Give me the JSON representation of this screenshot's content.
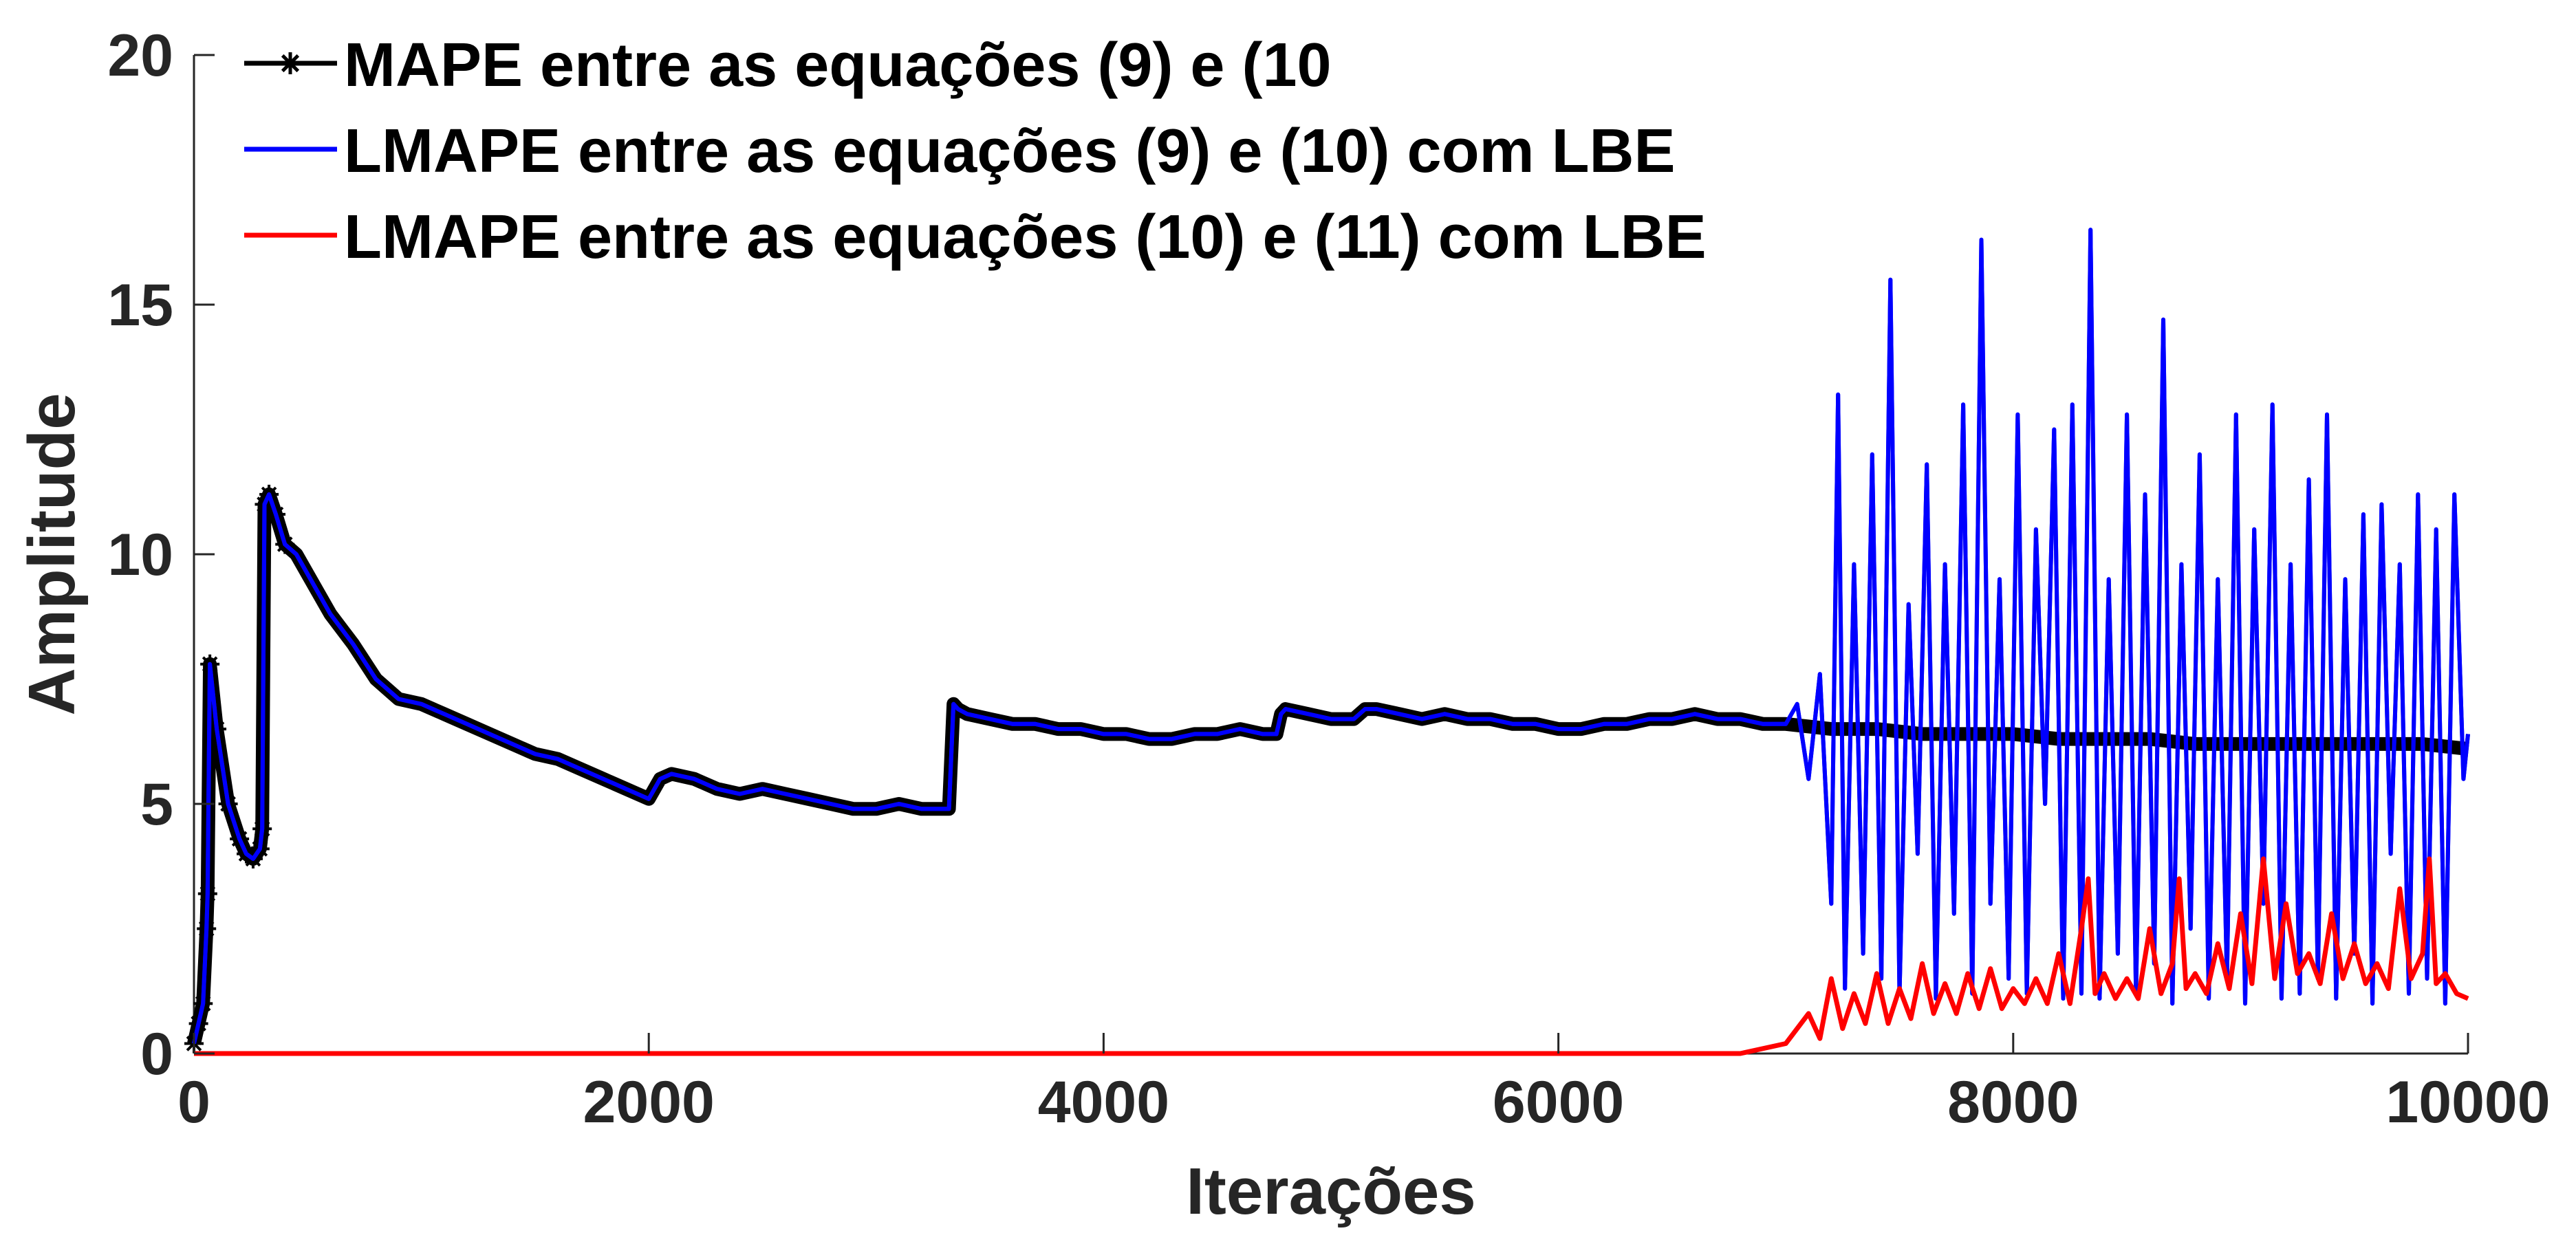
{
  "chart_data": {
    "type": "line",
    "title": "",
    "xlabel": "Iterações",
    "ylabel": "Amplitude",
    "xlim": [
      0,
      10000
    ],
    "ylim": [
      0,
      20
    ],
    "xticks": [
      0,
      2000,
      4000,
      6000,
      8000,
      10000
    ],
    "yticks": [
      0,
      5,
      10,
      15,
      20
    ],
    "xtick_labels": [
      "0",
      "2000",
      "4000",
      "6000",
      "8000",
      "10000"
    ],
    "ytick_labels": [
      "0",
      "5",
      "10",
      "15",
      "20"
    ],
    "grid": false,
    "legend_position": "top-left",
    "series": [
      {
        "name": "MAPE entre as equações (9) e (10",
        "color": "#000000",
        "marker": "asterisk",
        "x": [
          0,
          20,
          40,
          55,
          60,
          70,
          100,
          150,
          200,
          230,
          260,
          290,
          300,
          310,
          330,
          360,
          400,
          450,
          500,
          600,
          700,
          800,
          900,
          1000,
          1100,
          1200,
          1300,
          1400,
          1500,
          1600,
          1700,
          1800,
          1900,
          2000,
          2050,
          2100,
          2200,
          2300,
          2400,
          2500,
          2600,
          2700,
          2800,
          2900,
          3000,
          3100,
          3200,
          3320,
          3340,
          3360,
          3400,
          3500,
          3600,
          3700,
          3800,
          3900,
          4000,
          4100,
          4200,
          4300,
          4400,
          4500,
          4600,
          4700,
          4760,
          4780,
          4800,
          4900,
          5000,
          5100,
          5150,
          5200,
          5300,
          5400,
          5500,
          5600,
          5700,
          5800,
          5900,
          6000,
          6100,
          6200,
          6300,
          6400,
          6500,
          6600,
          6700,
          6800,
          6900,
          7000,
          7200,
          7400,
          7600,
          7800,
          8000,
          8200,
          8400,
          8600,
          8800,
          9000,
          9200,
          9400,
          9600,
          9800,
          10000
        ],
        "values": [
          0.2,
          0.6,
          1.0,
          2.5,
          3.2,
          7.8,
          6.5,
          5.0,
          4.3,
          4.0,
          3.9,
          4.1,
          4.5,
          11.0,
          11.2,
          10.8,
          10.2,
          10.0,
          9.6,
          8.8,
          8.2,
          7.5,
          7.1,
          7.0,
          6.8,
          6.6,
          6.4,
          6.2,
          6.0,
          5.9,
          5.7,
          5.5,
          5.3,
          5.1,
          5.5,
          5.6,
          5.5,
          5.3,
          5.2,
          5.3,
          5.2,
          5.1,
          5.0,
          4.9,
          4.9,
          5.0,
          4.9,
          4.9,
          7.0,
          6.9,
          6.8,
          6.7,
          6.6,
          6.6,
          6.5,
          6.5,
          6.4,
          6.4,
          6.3,
          6.3,
          6.4,
          6.4,
          6.5,
          6.4,
          6.4,
          6.8,
          6.9,
          6.8,
          6.7,
          6.7,
          6.9,
          6.9,
          6.8,
          6.7,
          6.8,
          6.7,
          6.7,
          6.6,
          6.6,
          6.5,
          6.5,
          6.6,
          6.6,
          6.7,
          6.7,
          6.8,
          6.7,
          6.7,
          6.6,
          6.6,
          6.5,
          6.5,
          6.4,
          6.4,
          6.4,
          6.3,
          6.3,
          6.3,
          6.2,
          6.2,
          6.2,
          6.2,
          6.2,
          6.2,
          6.1
        ]
      },
      {
        "name": "LMAPE entre as equações (9) e (10) com LBE",
        "color": "#0000ff",
        "marker": "none",
        "x": [
          0,
          20,
          40,
          55,
          60,
          70,
          100,
          150,
          200,
          230,
          260,
          290,
          300,
          310,
          330,
          360,
          400,
          450,
          500,
          600,
          700,
          800,
          900,
          1000,
          1100,
          1200,
          1300,
          1400,
          1500,
          1600,
          1700,
          1800,
          1900,
          2000,
          2050,
          2100,
          2200,
          2300,
          2400,
          2500,
          2600,
          2700,
          2800,
          2900,
          3000,
          3100,
          3200,
          3320,
          3340,
          3360,
          3400,
          3500,
          3600,
          3700,
          3800,
          3900,
          4000,
          4100,
          4200,
          4300,
          4400,
          4500,
          4600,
          4700,
          4760,
          4780,
          4800,
          4900,
          5000,
          5100,
          5150,
          5200,
          5300,
          5400,
          5500,
          5600,
          5700,
          5800,
          5900,
          6000,
          6100,
          6200,
          6300,
          6400,
          6500,
          6600,
          6700,
          6800,
          6900,
          7000,
          7050,
          7100,
          7150,
          7200,
          7230,
          7260,
          7300,
          7340,
          7380,
          7420,
          7460,
          7500,
          7540,
          7580,
          7620,
          7660,
          7700,
          7740,
          7780,
          7820,
          7860,
          7900,
          7940,
          7980,
          8020,
          8060,
          8100,
          8140,
          8180,
          8220,
          8260,
          8300,
          8340,
          8380,
          8420,
          8460,
          8500,
          8540,
          8580,
          8620,
          8660,
          8700,
          8740,
          8780,
          8820,
          8860,
          8900,
          8940,
          8980,
          9020,
          9060,
          9100,
          9140,
          9180,
          9220,
          9260,
          9300,
          9340,
          9380,
          9420,
          9460,
          9500,
          9540,
          9580,
          9620,
          9660,
          9700,
          9740,
          9780,
          9820,
          9860,
          9900,
          9940,
          9980,
          10000
        ],
        "values": [
          0.2,
          0.6,
          1.0,
          2.5,
          3.2,
          7.8,
          6.5,
          5.0,
          4.3,
          4.0,
          3.9,
          4.1,
          4.5,
          11.0,
          11.2,
          10.8,
          10.2,
          10.0,
          9.6,
          8.8,
          8.2,
          7.5,
          7.1,
          7.0,
          6.8,
          6.6,
          6.4,
          6.2,
          6.0,
          5.9,
          5.7,
          5.5,
          5.3,
          5.1,
          5.5,
          5.6,
          5.5,
          5.3,
          5.2,
          5.3,
          5.2,
          5.1,
          5.0,
          4.9,
          4.9,
          5.0,
          4.9,
          4.9,
          7.0,
          6.9,
          6.8,
          6.7,
          6.6,
          6.6,
          6.5,
          6.5,
          6.4,
          6.4,
          6.3,
          6.3,
          6.4,
          6.4,
          6.5,
          6.4,
          6.4,
          6.8,
          6.9,
          6.8,
          6.7,
          6.7,
          6.9,
          6.9,
          6.8,
          6.7,
          6.8,
          6.7,
          6.7,
          6.6,
          6.6,
          6.5,
          6.5,
          6.6,
          6.6,
          6.7,
          6.7,
          6.8,
          6.7,
          6.7,
          6.6,
          6.6,
          7.0,
          5.5,
          7.6,
          3.0,
          13.2,
          1.3,
          9.8,
          2.0,
          12.0,
          1.5,
          15.5,
          1.2,
          9.0,
          4.0,
          11.8,
          1.1,
          9.8,
          2.8,
          13.0,
          1.2,
          16.3,
          3.0,
          9.5,
          1.5,
          12.8,
          1.2,
          10.5,
          5.0,
          12.5,
          1.1,
          13.0,
          1.2,
          16.5,
          1.1,
          9.5,
          2.0,
          12.8,
          1.2,
          11.2,
          1.8,
          14.7,
          1.0,
          9.8,
          2.5,
          12.0,
          1.1,
          9.5,
          1.5,
          12.8,
          1.0,
          10.5,
          3.0,
          13.0,
          1.1,
          9.8,
          1.2,
          11.5,
          1.5,
          12.8,
          1.1,
          9.5,
          2.0,
          10.8,
          1.0,
          11.0,
          4.0,
          9.8,
          1.2,
          11.2,
          1.5,
          10.5,
          1.0,
          11.2,
          5.5,
          6.4
        ]
      },
      {
        "name": "LMAPE entre as equações (10) e (11) com LBE",
        "color": "#ff0000",
        "marker": "none",
        "x": [
          0,
          6800,
          7000,
          7100,
          7150,
          7200,
          7250,
          7300,
          7350,
          7400,
          7450,
          7500,
          7550,
          7600,
          7650,
          7700,
          7750,
          7800,
          7850,
          7900,
          7950,
          8000,
          8050,
          8100,
          8150,
          8200,
          8250,
          8300,
          8330,
          8360,
          8400,
          8450,
          8500,
          8550,
          8600,
          8650,
          8700,
          8730,
          8760,
          8800,
          8850,
          8900,
          8950,
          9000,
          9050,
          9100,
          9150,
          9200,
          9250,
          9300,
          9350,
          9400,
          9450,
          9500,
          9550,
          9600,
          9650,
          9700,
          9750,
          9800,
          9830,
          9860,
          9900,
          9950,
          10000
        ],
        "values": [
          0,
          0,
          0.2,
          0.8,
          0.3,
          1.5,
          0.5,
          1.2,
          0.6,
          1.6,
          0.6,
          1.3,
          0.7,
          1.8,
          0.8,
          1.4,
          0.8,
          1.6,
          0.9,
          1.7,
          0.9,
          1.3,
          1.0,
          1.5,
          1.0,
          2.0,
          1.0,
          2.5,
          3.5,
          1.2,
          1.6,
          1.1,
          1.5,
          1.1,
          2.5,
          1.2,
          1.8,
          3.5,
          1.3,
          1.6,
          1.2,
          2.2,
          1.3,
          2.8,
          1.4,
          3.9,
          1.5,
          3.0,
          1.6,
          2.0,
          1.4,
          2.8,
          1.5,
          2.2,
          1.4,
          1.8,
          1.3,
          3.3,
          1.5,
          2.0,
          3.9,
          1.4,
          1.6,
          1.2,
          1.1
        ]
      }
    ]
  }
}
